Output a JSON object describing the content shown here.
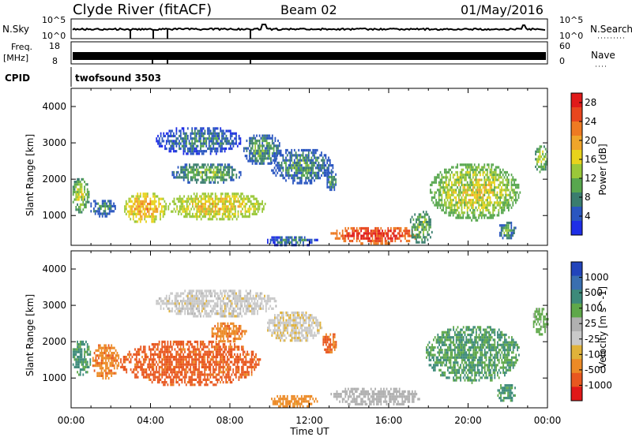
{
  "header": {
    "site": "Clyde River (fitACF)",
    "beam": "Beam 02",
    "date": "01/May/2016"
  },
  "strips": {
    "nsky": {
      "label": "N.Sky",
      "ticks": [
        "10^5",
        "10^0"
      ],
      "right_label": "N.Search",
      "right_ticks": [
        "10^5",
        "10^0"
      ]
    },
    "freq": {
      "label_line1": "Freq.",
      "label_line2": "[MHz]",
      "ticks": [
        "18",
        "8"
      ],
      "right_label": "Nave",
      "right_ticks": [
        "60",
        "0"
      ]
    },
    "cpid": {
      "label": "CPID",
      "value": "twofsound 3503"
    }
  },
  "colors": {
    "power_scale": [
      "#1e2ee6",
      "#2a56c0",
      "#3a7d6e",
      "#58a74e",
      "#9ac839",
      "#e8d31c",
      "#f0a52a",
      "#ee7a22",
      "#e8461e",
      "#e01a1a"
    ],
    "velocity_scale": [
      "#2244bb",
      "#3a6fb0",
      "#3d8a7a",
      "#5fa84a",
      "#b0b0b0",
      "#c9c9c9",
      "#e0b23a",
      "#ec8a26",
      "#e8571f",
      "#e01818"
    ]
  },
  "chart_data": [
    {
      "type": "heatmap",
      "name": "power",
      "ylabel": "Slant Range [km]",
      "ylim": [
        180,
        4500
      ],
      "yticks": [
        "1000",
        "2000",
        "3000",
        "4000"
      ],
      "xticks": [
        "00:00",
        "04:00",
        "08:00",
        "12:00",
        "16:00",
        "20:00",
        "00:00"
      ],
      "xlim_hours": [
        0,
        24
      ],
      "colorbar": {
        "label": "Power [dB]",
        "ticks": [
          "28",
          "24",
          "20",
          "16",
          "12",
          "8",
          "4"
        ],
        "range": [
          0,
          30
        ]
      },
      "blobs": [
        {
          "t0": 0.0,
          "t1": 0.9,
          "r0": 1100,
          "r1": 2100,
          "v": 14
        },
        {
          "t0": 0.9,
          "t1": 2.2,
          "r0": 1000,
          "r1": 1500,
          "v": 9
        },
        {
          "t0": 2.6,
          "t1": 4.8,
          "r0": 800,
          "r1": 1700,
          "v": 20
        },
        {
          "t0": 4.8,
          "t1": 9.8,
          "r0": 900,
          "r1": 1700,
          "v": 18
        },
        {
          "t0": 5.0,
          "t1": 8.6,
          "r0": 1900,
          "r1": 2500,
          "v": 11
        },
        {
          "t0": 4.2,
          "t1": 8.6,
          "r0": 2700,
          "r1": 3500,
          "v": 8
        },
        {
          "t0": 8.6,
          "t1": 10.6,
          "r0": 2400,
          "r1": 3300,
          "v": 10
        },
        {
          "t0": 10.0,
          "t1": 13.2,
          "r0": 1900,
          "r1": 2900,
          "v": 9
        },
        {
          "t0": 9.8,
          "t1": 12.4,
          "r0": 180,
          "r1": 500,
          "v": 8
        },
        {
          "t0": 12.8,
          "t1": 13.4,
          "r0": 1700,
          "r1": 2300,
          "v": 10
        },
        {
          "t0": 13.0,
          "t1": 17.6,
          "r0": 250,
          "r1": 750,
          "v": 28
        },
        {
          "t0": 17.0,
          "t1": 18.2,
          "r0": 250,
          "r1": 1200,
          "v": 12
        },
        {
          "t0": 18.0,
          "t1": 22.6,
          "r0": 900,
          "r1": 2500,
          "v": 16
        },
        {
          "t0": 21.5,
          "t1": 22.4,
          "r0": 350,
          "r1": 900,
          "v": 10
        },
        {
          "t0": 23.3,
          "t1": 24.0,
          "r0": 2200,
          "r1": 3000,
          "v": 14
        }
      ]
    },
    {
      "type": "heatmap",
      "name": "velocity",
      "ylabel": "Slant Range [km]",
      "ylim": [
        180,
        4500
      ],
      "yticks": [
        "1000",
        "2000",
        "3000",
        "4000"
      ],
      "xticks": [
        "00:00",
        "04:00",
        "08:00",
        "12:00",
        "16:00",
        "20:00",
        "00:00"
      ],
      "xlabel": "Time UT",
      "colorbar": {
        "label": "Velocity [m s^-1]",
        "ticks": [
          "1000",
          "500",
          "100",
          "25",
          "-25",
          "-100",
          "-500",
          "-1000"
        ],
        "range": [
          -1000,
          1000
        ]
      },
      "blobs": [
        {
          "t0": 0.0,
          "t1": 1.0,
          "r0": 1100,
          "r1": 2100,
          "v": 300
        },
        {
          "t0": 1.0,
          "t1": 2.4,
          "r0": 1000,
          "r1": 2000,
          "v": -200
        },
        {
          "t0": 2.4,
          "t1": 9.6,
          "r0": 800,
          "r1": 2100,
          "v": -350
        },
        {
          "t0": 7.0,
          "t1": 8.8,
          "r0": 2000,
          "r1": 2600,
          "v": -200
        },
        {
          "t0": 4.2,
          "t1": 10.4,
          "r0": 2700,
          "r1": 3500,
          "v": 0
        },
        {
          "t0": 9.8,
          "t1": 12.6,
          "r0": 2000,
          "r1": 2900,
          "v": -10
        },
        {
          "t0": 10.0,
          "t1": 12.4,
          "r0": 200,
          "r1": 600,
          "v": -150
        },
        {
          "t0": 12.6,
          "t1": 13.4,
          "r0": 1700,
          "r1": 2300,
          "v": -300
        },
        {
          "t0": 13.0,
          "t1": 17.6,
          "r0": 250,
          "r1": 800,
          "v": 60
        },
        {
          "t0": 17.8,
          "t1": 22.6,
          "r0": 900,
          "r1": 2500,
          "v": 250
        },
        {
          "t0": 21.4,
          "t1": 22.4,
          "r0": 350,
          "r1": 900,
          "v": 300
        },
        {
          "t0": 23.2,
          "t1": 24.0,
          "r0": 2200,
          "r1": 3000,
          "v": 150
        }
      ]
    }
  ]
}
